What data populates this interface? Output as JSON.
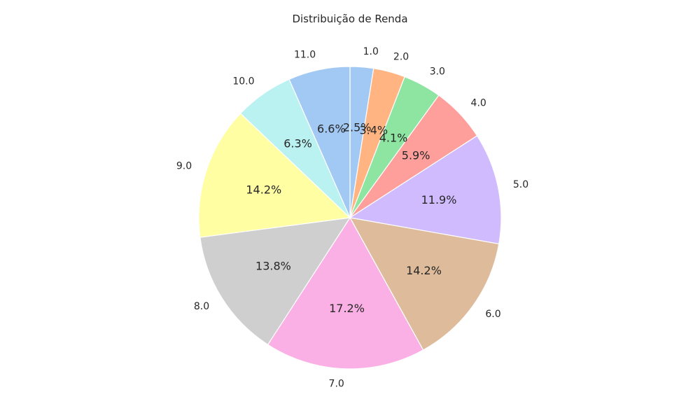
{
  "chart_data": {
    "type": "pie",
    "title": "Distribuição de Renda",
    "categories": [
      "1.0",
      "2.0",
      "3.0",
      "4.0",
      "5.0",
      "6.0",
      "7.0",
      "8.0",
      "9.0",
      "10.0",
      "11.0"
    ],
    "values": [
      2.5,
      3.4,
      4.1,
      5.9,
      11.9,
      14.2,
      17.2,
      13.8,
      14.2,
      6.3,
      6.6
    ],
    "value_labels": [
      "2.5%",
      "3.4%",
      "4.1%",
      "5.9%",
      "11.9%",
      "14.2%",
      "17.2%",
      "13.8%",
      "14.2%",
      "6.3%",
      "6.6%"
    ],
    "colors": [
      "#a1c9f4",
      "#ffb482",
      "#8de5a1",
      "#ff9f9b",
      "#d0bbff",
      "#debb9b",
      "#fab0e4",
      "#cfcfcf",
      "#fffea3",
      "#b9f2f0",
      "#a1c9f4"
    ],
    "start_angle_deg": 90,
    "direction": "clockwise",
    "legend": "none"
  }
}
